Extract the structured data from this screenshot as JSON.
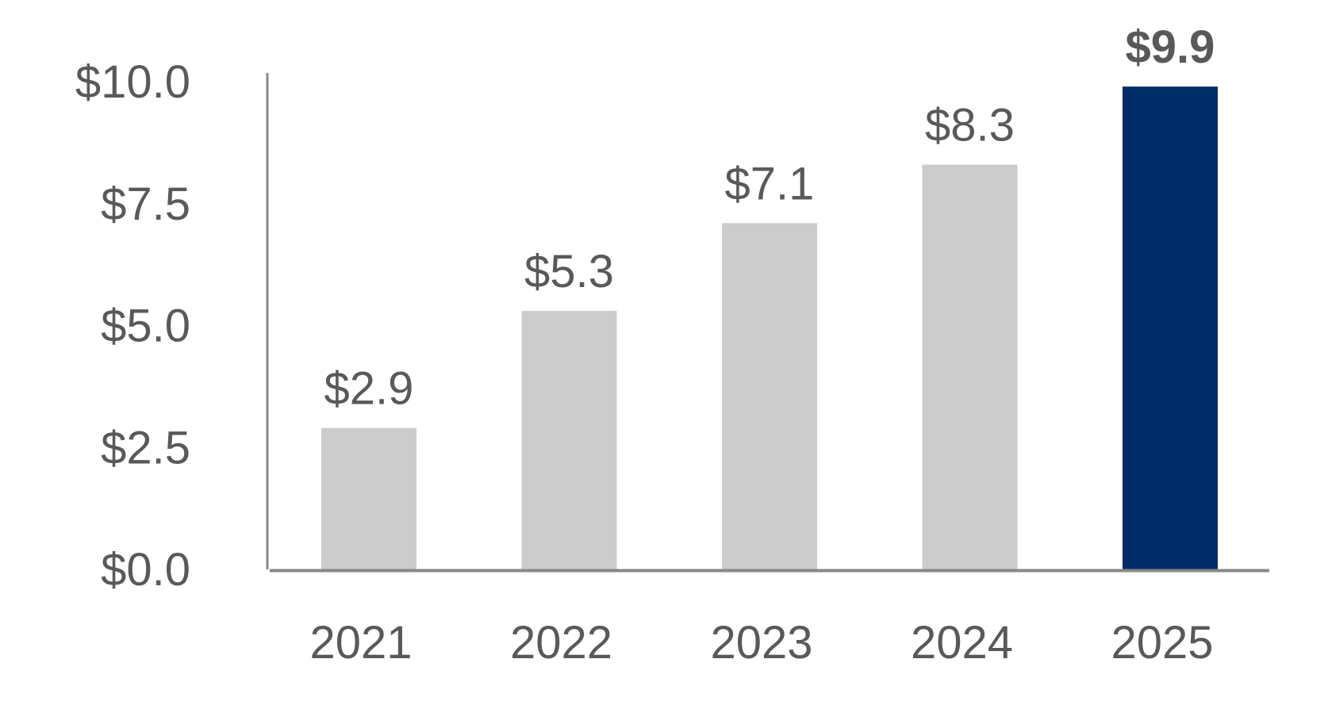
{
  "chart_data": {
    "type": "bar",
    "title": "",
    "xlabel": "",
    "ylabel": "",
    "categories": [
      "2021",
      "2022",
      "2023",
      "2024",
      "2025"
    ],
    "values": [
      2.9,
      5.3,
      7.1,
      8.3,
      9.9
    ],
    "value_labels": [
      "$2.9",
      "$5.3",
      "$7.1",
      "$8.3",
      "$9.9"
    ],
    "highlighted_index": 4,
    "ylim": [
      0,
      10
    ],
    "yticks": [
      0,
      2.5,
      5,
      7.5,
      10
    ],
    "ytick_labels": [
      "$0.0",
      "$2.5",
      "$5.0",
      "$7.5",
      "$10.0"
    ],
    "grid": false,
    "legend": "none",
    "colors": {
      "bar": "#cccccc",
      "highlight_bar": "#002d67",
      "axis": "#888888",
      "text": "#595959"
    }
  }
}
